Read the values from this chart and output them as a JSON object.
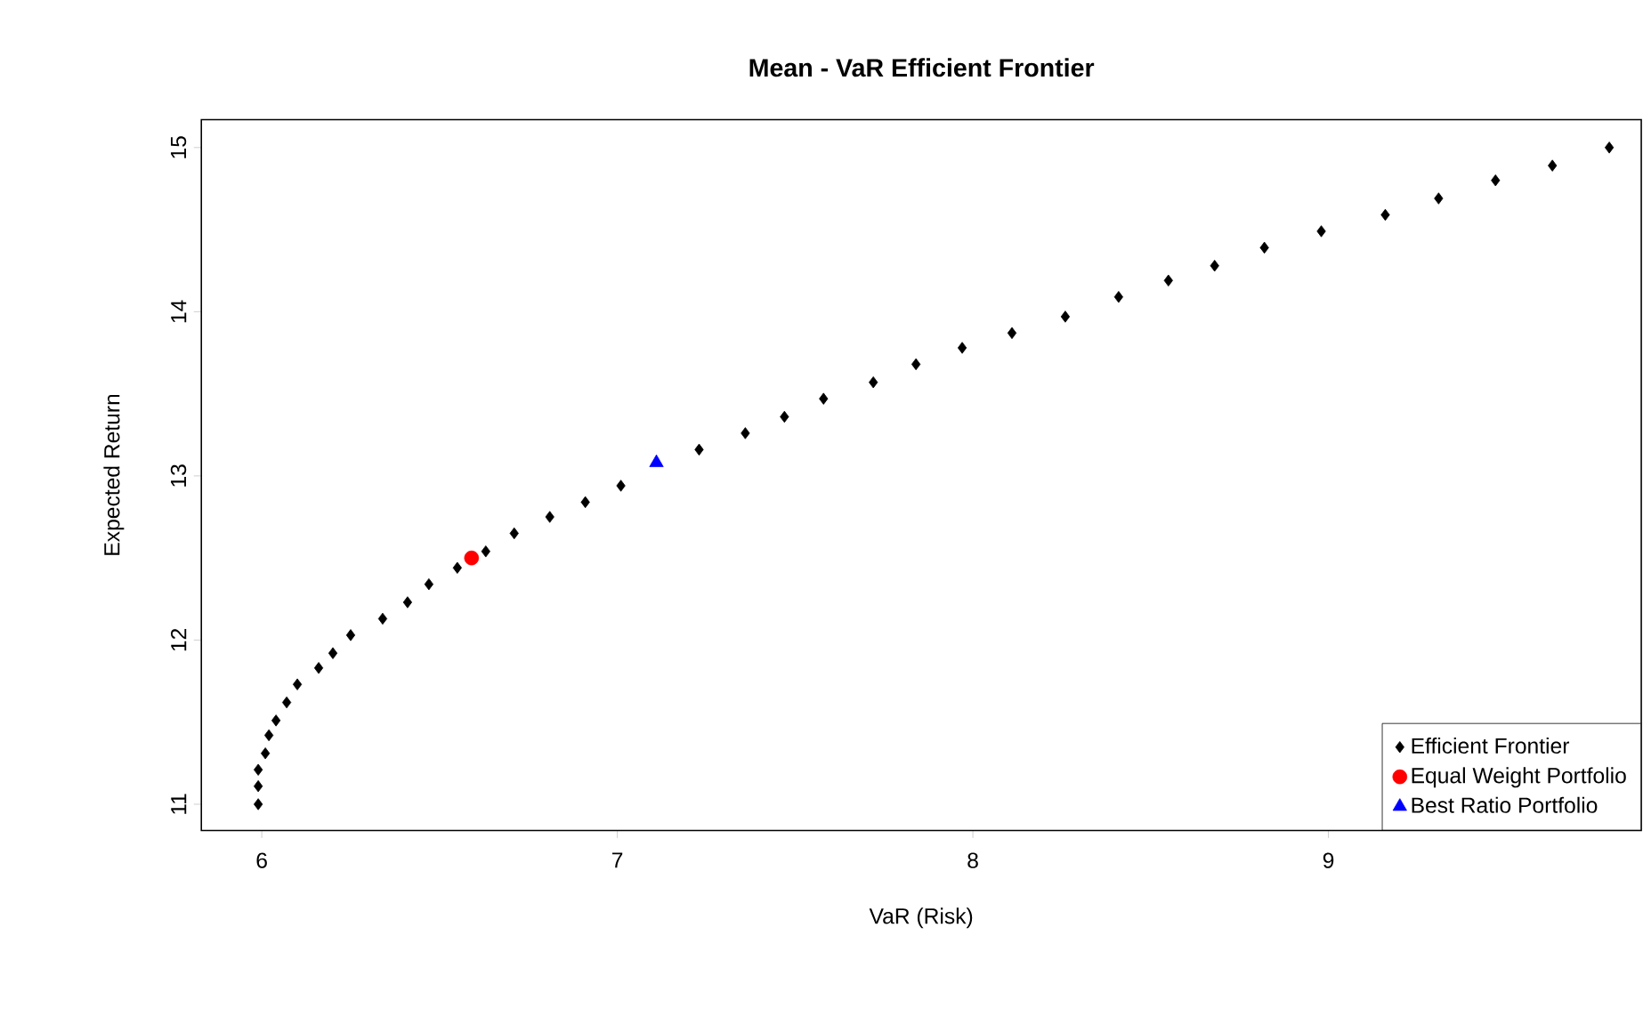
{
  "chart_data": {
    "type": "scatter",
    "title": "Mean - VaR Efficient Frontier",
    "xlabel": "VaR (Risk)",
    "ylabel": "Expected Return",
    "xlim": [
      5.83,
      9.88
    ],
    "ylim": [
      10.84,
      15.17
    ],
    "xticks": [
      6,
      7,
      8,
      9
    ],
    "yticks": [
      11,
      12,
      13,
      14,
      15
    ],
    "grid": false,
    "legend": "bottom right",
    "series": [
      {
        "name": "Efficient Frontier",
        "color": "#000000",
        "marker": "diamond",
        "x": [
          5.99,
          5.99,
          5.99,
          6.01,
          6.02,
          6.04,
          6.07,
          6.1,
          6.16,
          6.2,
          6.25,
          6.34,
          6.41,
          6.47,
          6.55,
          6.63,
          6.71,
          6.81,
          6.91,
          7.01,
          7.23,
          7.36,
          7.47,
          7.58,
          7.72,
          7.84,
          7.97,
          8.11,
          8.26,
          8.41,
          8.55,
          8.68,
          8.82,
          8.98,
          9.16,
          9.31,
          9.47,
          9.63,
          9.79
        ],
        "values": [
          11.0,
          11.11,
          11.21,
          11.31,
          11.42,
          11.51,
          11.62,
          11.73,
          11.83,
          11.92,
          12.03,
          12.13,
          12.23,
          12.34,
          12.44,
          12.54,
          12.65,
          12.75,
          12.84,
          12.94,
          13.16,
          13.26,
          13.36,
          13.47,
          13.57,
          13.68,
          13.78,
          13.87,
          13.97,
          14.09,
          14.19,
          14.28,
          14.39,
          14.49,
          14.59,
          14.69,
          14.8,
          14.89,
          15.0
        ]
      },
      {
        "name": "Equal Weight Portfolio",
        "color": "#ff0000",
        "marker": "circle",
        "x": [
          6.59
        ],
        "values": [
          12.5
        ]
      },
      {
        "name": "Best Ratio Portfolio",
        "color": "#0000ff",
        "marker": "triangle",
        "x": [
          7.11
        ],
        "values": [
          13.08
        ]
      }
    ]
  }
}
